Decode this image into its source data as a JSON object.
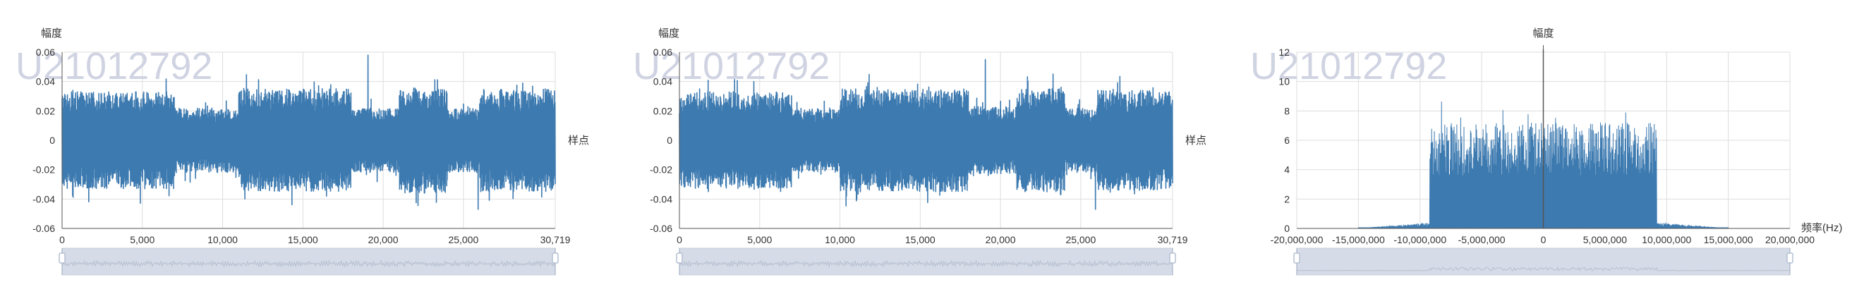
{
  "watermark": "U21012792",
  "colors": {
    "series": "#3d7ab0",
    "grid": "#dddddd",
    "axis": "#555555",
    "zoom_bg": "#d6dce7",
    "zoom_line": "#b5bfd0",
    "zoom_handle": "#b4bfd2"
  },
  "chart_data": [
    {
      "type": "line",
      "name": "time-domain-1",
      "ylabel": "幅度",
      "xlabel": "样点",
      "ylim": [
        -0.06,
        0.06
      ],
      "xlim": [
        0,
        30719
      ],
      "yticks": [
        "-0.06",
        "-0.04",
        "-0.02",
        "0",
        "0.02",
        "0.04",
        "0.06"
      ],
      "ytick_values": [
        -0.06,
        -0.04,
        -0.02,
        0,
        0.02,
        0.04,
        0.06
      ],
      "xticks": [
        "0",
        "5,000",
        "10,000",
        "15,000",
        "20,000",
        "25,000",
        "30,719"
      ],
      "xtick_values": [
        0,
        5000,
        10000,
        15000,
        20000,
        25000,
        30719
      ],
      "signal": {
        "segments": [
          [
            0,
            7000,
            0.033
          ],
          [
            7000,
            11000,
            0.022
          ],
          [
            11000,
            18000,
            0.035
          ],
          [
            18000,
            21000,
            0.022
          ],
          [
            21000,
            24000,
            0.036
          ],
          [
            24000,
            26000,
            0.022
          ],
          [
            26000,
            30719,
            0.035
          ]
        ],
        "peak_max": 0.058,
        "peak_min": -0.047
      }
    },
    {
      "type": "line",
      "name": "time-domain-2",
      "ylabel": "幅度",
      "xlabel": "样点",
      "ylim": [
        -0.06,
        0.06
      ],
      "xlim": [
        0,
        30719
      ],
      "yticks": [
        "-0.06",
        "-0.04",
        "-0.02",
        "0",
        "0.02",
        "0.04",
        "0.06"
      ],
      "ytick_values": [
        -0.06,
        -0.04,
        -0.02,
        0,
        0.02,
        0.04,
        0.06
      ],
      "xticks": [
        "0",
        "5,000",
        "10,000",
        "15,000",
        "20,000",
        "25,000",
        "30,719"
      ],
      "xtick_values": [
        0,
        5000,
        10000,
        15000,
        20000,
        25000,
        30719
      ],
      "signal": {
        "segments": [
          [
            0,
            7000,
            0.033
          ],
          [
            7000,
            10000,
            0.022
          ],
          [
            10000,
            18000,
            0.035
          ],
          [
            18000,
            21000,
            0.023
          ],
          [
            21000,
            24000,
            0.035
          ],
          [
            24000,
            26000,
            0.022
          ],
          [
            26000,
            30719,
            0.034
          ]
        ],
        "peak_max": 0.055,
        "peak_min": -0.047
      }
    },
    {
      "type": "area",
      "name": "spectrum",
      "ylabel": "幅度",
      "xlabel": "频率(Hz)",
      "ylim": [
        0,
        12
      ],
      "xlim": [
        -20000000,
        20000000
      ],
      "yticks": [
        "0",
        "2",
        "4",
        "6",
        "8",
        "10",
        "12"
      ],
      "ytick_values": [
        0,
        2,
        4,
        6,
        8,
        10,
        12
      ],
      "xticks": [
        "-20,000,000",
        "-15,000,000",
        "-10,000,000",
        "-5,000,000",
        "0",
        "5,000,000",
        "10,000,000",
        "15,000,000",
        "20,000,000"
      ],
      "xtick_values": [
        -20000000,
        -15000000,
        -10000000,
        -5000000,
        0,
        5000000,
        10000000,
        15000000,
        20000000
      ],
      "signal": {
        "band": [
          -9200000,
          9200000
        ],
        "band_level": 7.2,
        "band_peak": 9.3,
        "skirt": [
          -15000000,
          15000000
        ],
        "dc_spike": 12.2
      }
    }
  ]
}
